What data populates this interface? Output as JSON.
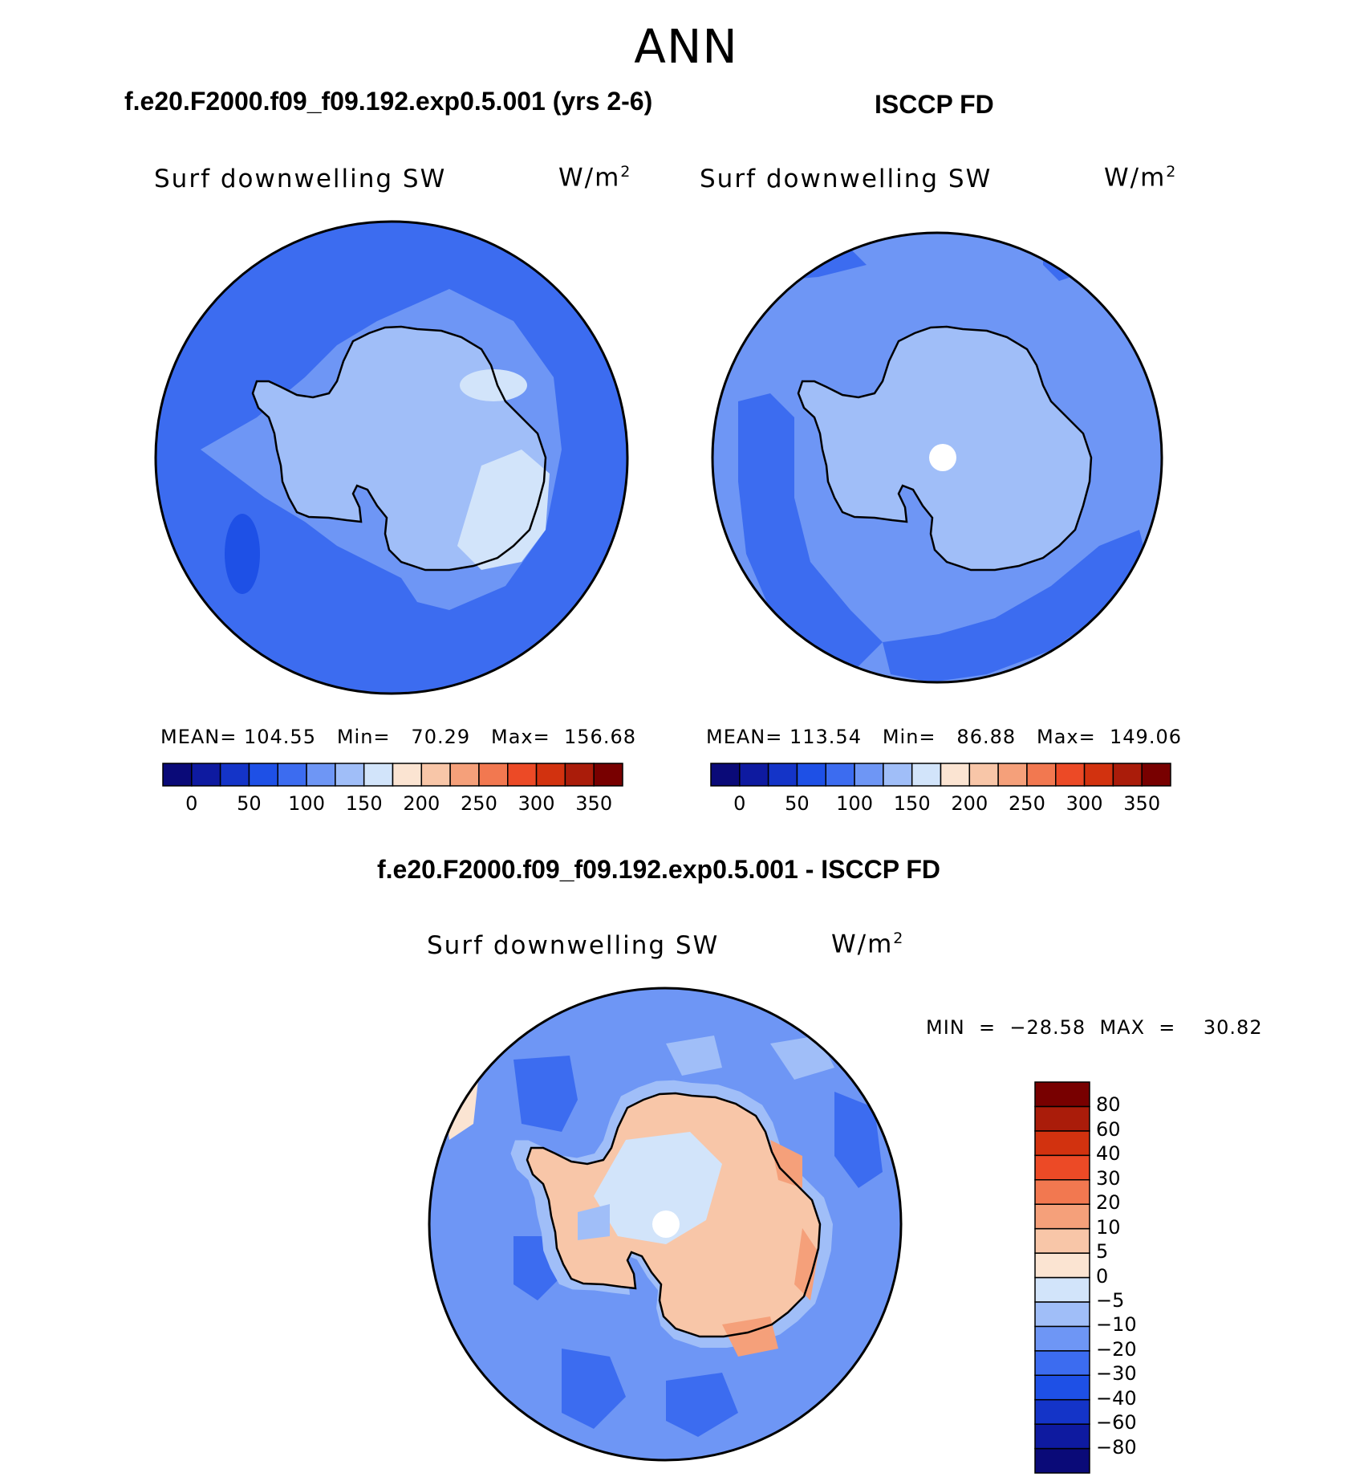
{
  "figure": {
    "title": "ANN",
    "variable_label": "Surf downwelling SW",
    "units_base": "W/m",
    "units_exp": "2"
  },
  "panels": {
    "model": {
      "title": "f.e20.F2000.f09_f09.192.exp0.5.001 (yrs 2-6)",
      "stats": "MEAN= 104.55   Min=   70.29   Max=  156.68"
    },
    "obs": {
      "title": "ISCCP FD",
      "stats": "MEAN= 113.54   Min=   86.88   Max=  149.06"
    },
    "diff": {
      "title": "f.e20.F2000.f09_f09.192.exp0.5.001 - ISCCP FD",
      "stats": "MIN  =  −28.58  MAX  =    30.82"
    }
  },
  "colorbars": {
    "abs": {
      "colors": [
        "#0a0a78",
        "#0e1aa0",
        "#1434c8",
        "#1e50e6",
        "#3c6cf0",
        "#6e96f5",
        "#a0bef8",
        "#d2e4fa",
        "#fbe4d2",
        "#f8c6a8",
        "#f5a07a",
        "#f27850",
        "#ec4a26",
        "#d2320f",
        "#aa1c0a",
        "#780000"
      ],
      "ticks": [
        "0",
        "50",
        "100",
        "150",
        "200",
        "250",
        "300",
        "350"
      ]
    },
    "diff": {
      "colors": [
        "#0a0a78",
        "#0e1aa0",
        "#1434c8",
        "#1e50e6",
        "#3c6cf0",
        "#6e96f5",
        "#a0bef8",
        "#d2e4fa",
        "#fbe4d2",
        "#f8c6a8",
        "#f5a07a",
        "#f27850",
        "#ec4a26",
        "#d2320f",
        "#aa1c0a",
        "#780000"
      ],
      "ticks": [
        "−80",
        "−60",
        "−40",
        "−30",
        "−20",
        "−10",
        "−5",
        "0",
        "5",
        "10",
        "20",
        "30",
        "40",
        "60",
        "80"
      ]
    }
  },
  "chart_data": [
    {
      "type": "heatmap",
      "title": "f.e20.F2000.f09_f09.192.exp0.5.001 (yrs 2-6)",
      "projection": "south polar stereographic",
      "variable": "Surf downwelling SW",
      "units": "W/m2",
      "mean": 104.55,
      "min": 70.29,
      "max": 156.68,
      "levels": [
        0,
        25,
        50,
        75,
        100,
        125,
        150,
        175,
        200,
        225,
        250,
        275,
        300,
        325,
        350
      ]
    },
    {
      "type": "heatmap",
      "title": "ISCCP FD",
      "projection": "south polar stereographic",
      "variable": "Surf downwelling SW",
      "units": "W/m2",
      "mean": 113.54,
      "min": 86.88,
      "max": 149.06,
      "levels": [
        0,
        25,
        50,
        75,
        100,
        125,
        150,
        175,
        200,
        225,
        250,
        275,
        300,
        325,
        350
      ]
    },
    {
      "type": "heatmap",
      "title": "f.e20.F2000.f09_f09.192.exp0.5.001 - ISCCP FD",
      "projection": "south polar stereographic",
      "variable": "Surf downwelling SW",
      "units": "W/m2",
      "min": -28.58,
      "max": 30.82,
      "levels": [
        -80,
        -60,
        -40,
        -30,
        -20,
        -10,
        -5,
        0,
        5,
        10,
        20,
        30,
        40,
        60,
        80
      ]
    }
  ]
}
